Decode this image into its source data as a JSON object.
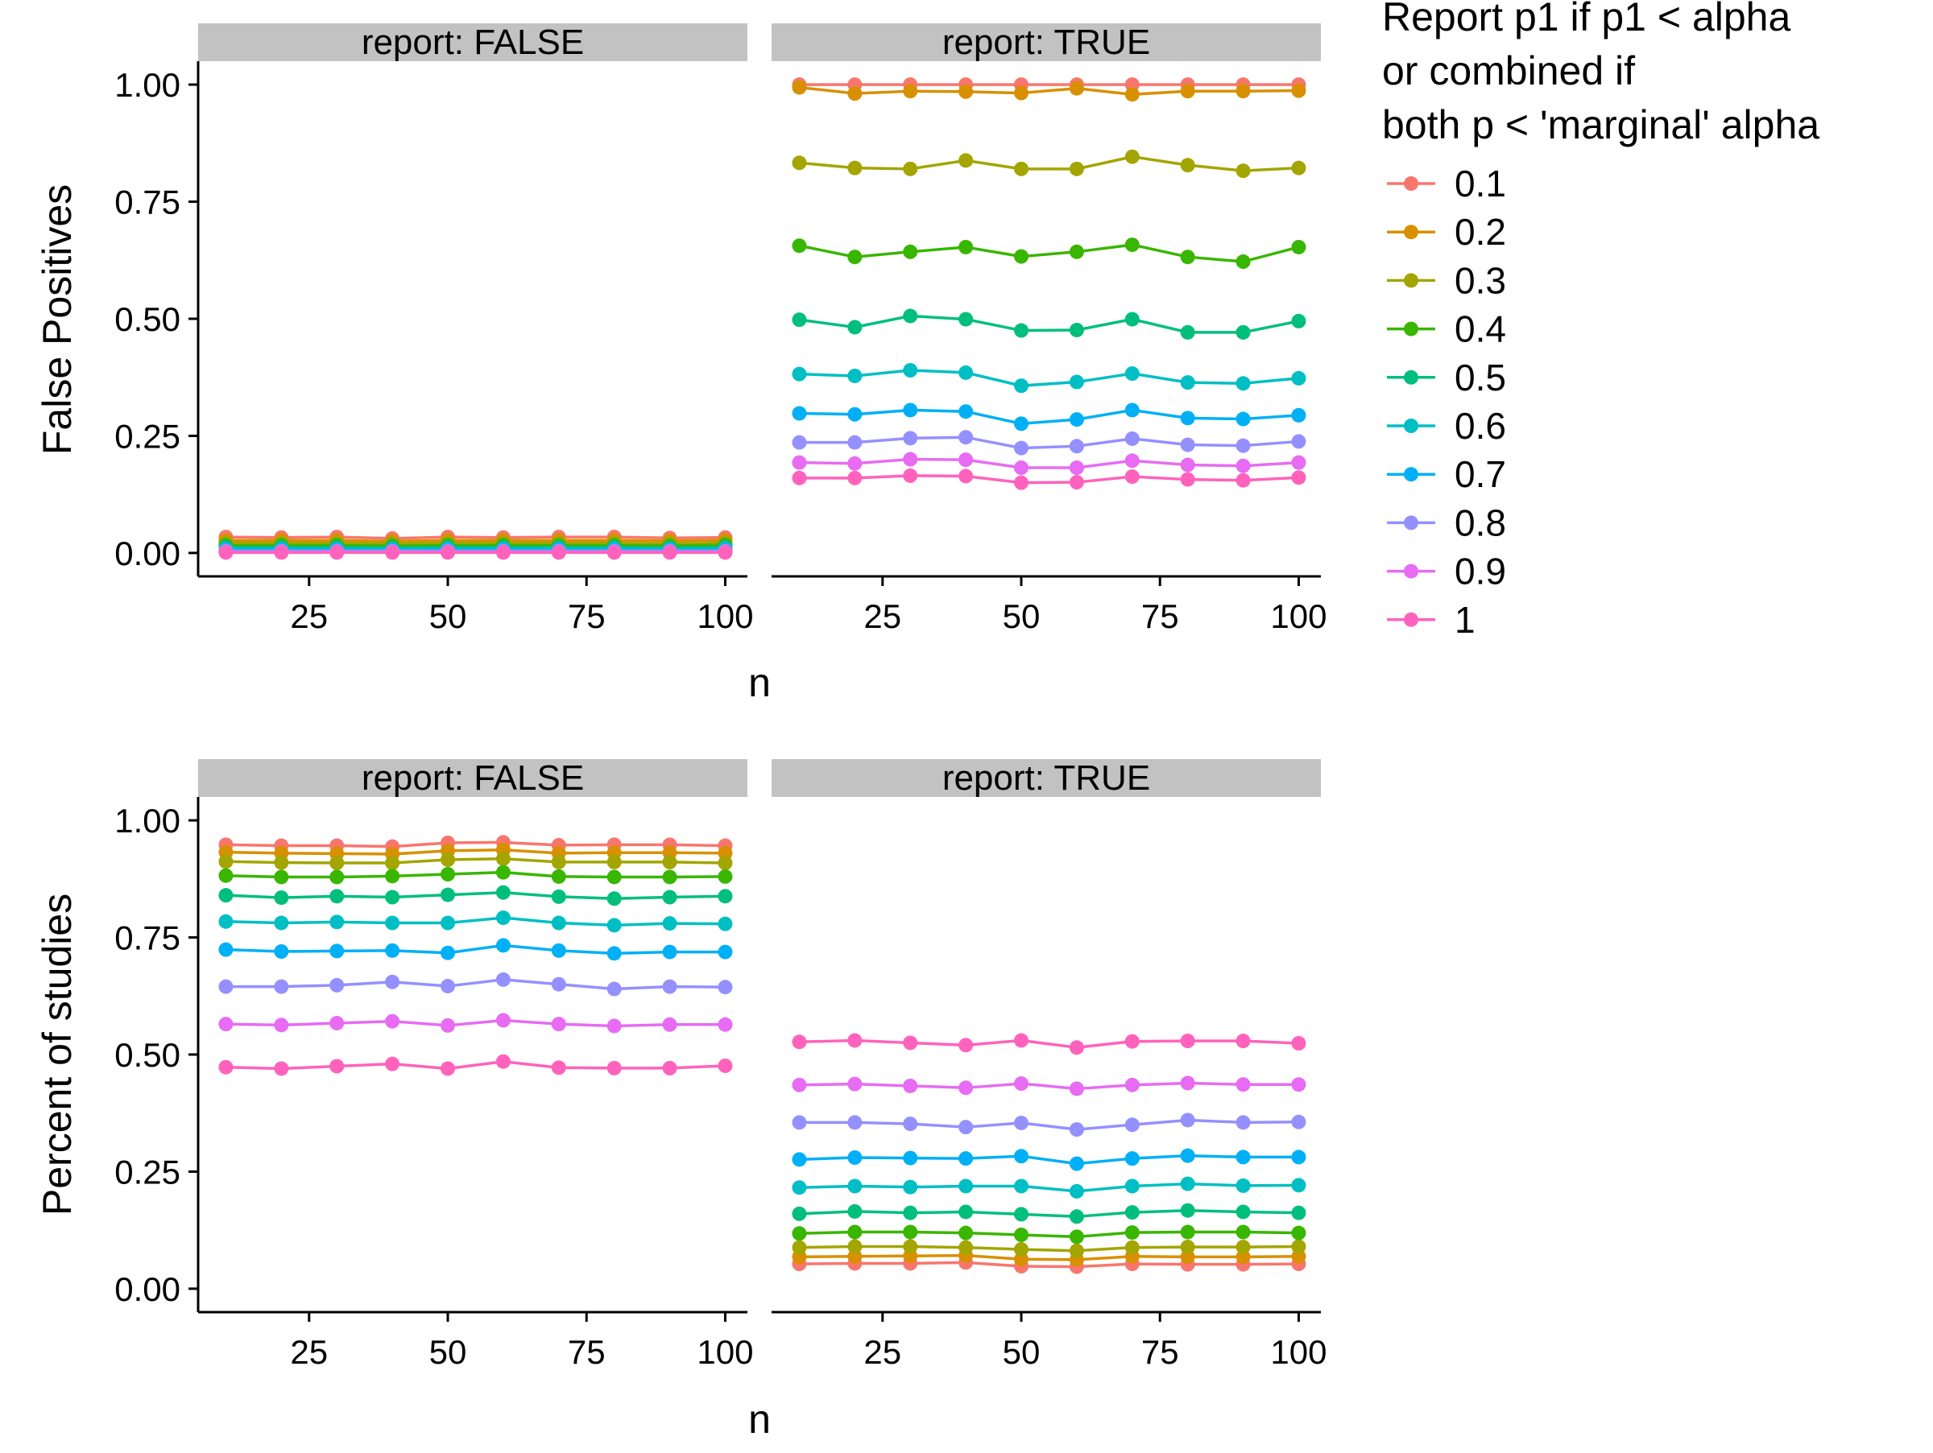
{
  "chart_data": [
    {
      "type": "line",
      "id": "top",
      "ylabel": "False Positives",
      "xlabel": "n",
      "x": [
        10,
        20,
        30,
        40,
        50,
        60,
        70,
        80,
        90,
        100
      ],
      "xticks": [
        25,
        50,
        75,
        100
      ],
      "yticks": [
        0.0,
        0.25,
        0.5,
        0.75,
        1.0
      ],
      "ytick_labels": [
        "0.00",
        "0.25",
        "0.50",
        "0.75",
        "1.00"
      ],
      "xlim": [
        5,
        104
      ],
      "ylim": [
        -0.05,
        1.05
      ],
      "grid": false,
      "panels": [
        {
          "strip": "report: FALSE",
          "series": [
            {
              "name": "0.1",
              "values": [
                0.034,
                0.033,
                0.034,
                0.031,
                0.034,
                0.033,
                0.034,
                0.034,
                0.032,
                0.033
              ]
            },
            {
              "name": "0.2",
              "values": [
                0.027,
                0.027,
                0.027,
                0.025,
                0.027,
                0.027,
                0.027,
                0.027,
                0.026,
                0.027
              ]
            },
            {
              "name": "0.3",
              "values": [
                0.021,
                0.021,
                0.021,
                0.02,
                0.021,
                0.021,
                0.021,
                0.021,
                0.02,
                0.021
              ]
            },
            {
              "name": "0.4",
              "values": [
                0.016,
                0.016,
                0.016,
                0.015,
                0.016,
                0.016,
                0.016,
                0.016,
                0.015,
                0.017
              ]
            },
            {
              "name": "0.5",
              "values": [
                0.012,
                0.012,
                0.012,
                0.011,
                0.012,
                0.012,
                0.012,
                0.012,
                0.011,
                0.012
              ]
            },
            {
              "name": "0.6",
              "values": [
                0.009,
                0.009,
                0.009,
                0.008,
                0.009,
                0.009,
                0.009,
                0.009,
                0.008,
                0.009
              ]
            },
            {
              "name": "0.7",
              "values": [
                0.006,
                0.006,
                0.006,
                0.006,
                0.006,
                0.006,
                0.006,
                0.006,
                0.006,
                0.006
              ]
            },
            {
              "name": "0.8",
              "values": [
                0.004,
                0.004,
                0.004,
                0.004,
                0.004,
                0.004,
                0.004,
                0.004,
                0.004,
                0.004
              ]
            },
            {
              "name": "0.9",
              "values": [
                0.002,
                0.002,
                0.002,
                0.002,
                0.002,
                0.002,
                0.002,
                0.002,
                0.002,
                0.002
              ]
            },
            {
              "name": "1",
              "values": [
                0.001,
                0.001,
                0.001,
                0.001,
                0.001,
                0.001,
                0.001,
                0.001,
                0.001,
                0.001
              ]
            }
          ]
        },
        {
          "strip": "report: TRUE",
          "series": [
            {
              "name": "0.1",
              "values": [
                1.0,
                1.0,
                1.0,
                1.0,
                1.0,
                1.0,
                1.0,
                1.0,
                1.0,
                1.0
              ]
            },
            {
              "name": "0.2",
              "values": [
                0.994,
                0.981,
                0.986,
                0.985,
                0.982,
                0.992,
                0.979,
                0.986,
                0.986,
                0.987
              ]
            },
            {
              "name": "0.3",
              "values": [
                0.833,
                0.822,
                0.82,
                0.838,
                0.82,
                0.82,
                0.846,
                0.828,
                0.816,
                0.822
              ]
            },
            {
              "name": "0.4",
              "values": [
                0.656,
                0.632,
                0.643,
                0.653,
                0.633,
                0.643,
                0.658,
                0.632,
                0.622,
                0.653
              ]
            },
            {
              "name": "0.5",
              "values": [
                0.498,
                0.482,
                0.506,
                0.499,
                0.475,
                0.476,
                0.499,
                0.471,
                0.471,
                0.495
              ]
            },
            {
              "name": "0.6",
              "values": [
                0.382,
                0.378,
                0.39,
                0.385,
                0.357,
                0.365,
                0.383,
                0.364,
                0.362,
                0.373
              ]
            },
            {
              "name": "0.7",
              "values": [
                0.298,
                0.296,
                0.305,
                0.302,
                0.276,
                0.285,
                0.305,
                0.288,
                0.286,
                0.294
              ]
            },
            {
              "name": "0.8",
              "values": [
                0.236,
                0.236,
                0.245,
                0.247,
                0.224,
                0.228,
                0.244,
                0.231,
                0.229,
                0.238
              ]
            },
            {
              "name": "0.9",
              "values": [
                0.193,
                0.191,
                0.2,
                0.199,
                0.182,
                0.182,
                0.197,
                0.188,
                0.186,
                0.193
              ]
            },
            {
              "name": "1",
              "values": [
                0.16,
                0.16,
                0.165,
                0.164,
                0.15,
                0.151,
                0.163,
                0.157,
                0.155,
                0.161
              ]
            }
          ]
        }
      ]
    },
    {
      "type": "line",
      "id": "bottom",
      "ylabel": "Percent of studies",
      "xlabel": "n",
      "x": [
        10,
        20,
        30,
        40,
        50,
        60,
        70,
        80,
        90,
        100
      ],
      "xticks": [
        25,
        50,
        75,
        100
      ],
      "yticks": [
        0.0,
        0.25,
        0.5,
        0.75,
        1.0
      ],
      "ytick_labels": [
        "0.00",
        "0.25",
        "0.50",
        "0.75",
        "1.00"
      ],
      "xlim": [
        5,
        104
      ],
      "ylim": [
        -0.05,
        1.05
      ],
      "grid": false,
      "panels": [
        {
          "strip": "report: FALSE",
          "series": [
            {
              "name": "0.1",
              "values": [
                0.948,
                0.946,
                0.946,
                0.944,
                0.952,
                0.953,
                0.947,
                0.948,
                0.948,
                0.946
              ]
            },
            {
              "name": "0.2",
              "values": [
                0.932,
                0.93,
                0.929,
                0.928,
                0.935,
                0.937,
                0.93,
                0.931,
                0.931,
                0.93
              ]
            },
            {
              "name": "0.3",
              "values": [
                0.912,
                0.91,
                0.909,
                0.909,
                0.916,
                0.918,
                0.911,
                0.911,
                0.911,
                0.909
              ]
            },
            {
              "name": "0.4",
              "values": [
                0.882,
                0.879,
                0.879,
                0.881,
                0.885,
                0.889,
                0.88,
                0.879,
                0.879,
                0.88
              ]
            },
            {
              "name": "0.5",
              "values": [
                0.84,
                0.835,
                0.838,
                0.836,
                0.841,
                0.846,
                0.837,
                0.833,
                0.836,
                0.838
              ]
            },
            {
              "name": "0.6",
              "values": [
                0.784,
                0.781,
                0.783,
                0.781,
                0.781,
                0.792,
                0.781,
                0.776,
                0.78,
                0.779
              ]
            },
            {
              "name": "0.7",
              "values": [
                0.724,
                0.72,
                0.721,
                0.722,
                0.717,
                0.733,
                0.722,
                0.716,
                0.719,
                0.719
              ]
            },
            {
              "name": "0.8",
              "values": [
                0.645,
                0.645,
                0.648,
                0.655,
                0.646,
                0.66,
                0.65,
                0.64,
                0.645,
                0.644
              ]
            },
            {
              "name": "0.9",
              "values": [
                0.565,
                0.563,
                0.567,
                0.571,
                0.562,
                0.573,
                0.565,
                0.561,
                0.564,
                0.564
              ]
            },
            {
              "name": "1",
              "values": [
                0.473,
                0.47,
                0.475,
                0.48,
                0.47,
                0.485,
                0.472,
                0.471,
                0.471,
                0.476
              ]
            }
          ]
        },
        {
          "strip": "report: TRUE",
          "series": [
            {
              "name": "0.1",
              "values": [
                0.053,
                0.054,
                0.054,
                0.056,
                0.048,
                0.047,
                0.053,
                0.052,
                0.052,
                0.053
              ]
            },
            {
              "name": "0.2",
              "values": [
                0.068,
                0.069,
                0.07,
                0.071,
                0.063,
                0.062,
                0.069,
                0.068,
                0.068,
                0.069
              ]
            },
            {
              "name": "0.3",
              "values": [
                0.088,
                0.09,
                0.09,
                0.088,
                0.084,
                0.081,
                0.088,
                0.089,
                0.089,
                0.09
              ]
            },
            {
              "name": "0.4",
              "values": [
                0.118,
                0.121,
                0.121,
                0.119,
                0.115,
                0.111,
                0.12,
                0.121,
                0.121,
                0.119
              ]
            },
            {
              "name": "0.5",
              "values": [
                0.16,
                0.165,
                0.162,
                0.164,
                0.159,
                0.154,
                0.163,
                0.167,
                0.164,
                0.162
              ]
            },
            {
              "name": "0.6",
              "values": [
                0.216,
                0.219,
                0.217,
                0.219,
                0.219,
                0.208,
                0.219,
                0.224,
                0.22,
                0.221
              ]
            },
            {
              "name": "0.7",
              "values": [
                0.276,
                0.28,
                0.279,
                0.278,
                0.283,
                0.267,
                0.278,
                0.284,
                0.281,
                0.281
              ]
            },
            {
              "name": "0.8",
              "values": [
                0.355,
                0.355,
                0.352,
                0.345,
                0.354,
                0.34,
                0.35,
                0.36,
                0.355,
                0.356
              ]
            },
            {
              "name": "0.9",
              "values": [
                0.435,
                0.437,
                0.433,
                0.429,
                0.438,
                0.427,
                0.435,
                0.439,
                0.436,
                0.436
              ]
            },
            {
              "name": "1",
              "values": [
                0.527,
                0.53,
                0.525,
                0.52,
                0.53,
                0.515,
                0.528,
                0.529,
                0.529,
                0.524
              ]
            }
          ]
        }
      ]
    }
  ],
  "legend": {
    "title_lines": [
      "Report p1 if p1 < alpha",
      "or combined if",
      "both p < 'marginal' alpha"
    ],
    "placement": "right",
    "entries": [
      {
        "label": "0.1",
        "color": "#F8766D"
      },
      {
        "label": "0.2",
        "color": "#D89000"
      },
      {
        "label": "0.3",
        "color": "#A3A500"
      },
      {
        "label": "0.4",
        "color": "#39B600"
      },
      {
        "label": "0.5",
        "color": "#00BF7D"
      },
      {
        "label": "0.6",
        "color": "#00BFC4"
      },
      {
        "label": "0.7",
        "color": "#00B0F6"
      },
      {
        "label": "0.8",
        "color": "#9590FF"
      },
      {
        "label": "0.9",
        "color": "#E76BF3"
      },
      {
        "label": "1",
        "color": "#FF62BC"
      }
    ]
  },
  "strip_color": "#C2C2C2"
}
